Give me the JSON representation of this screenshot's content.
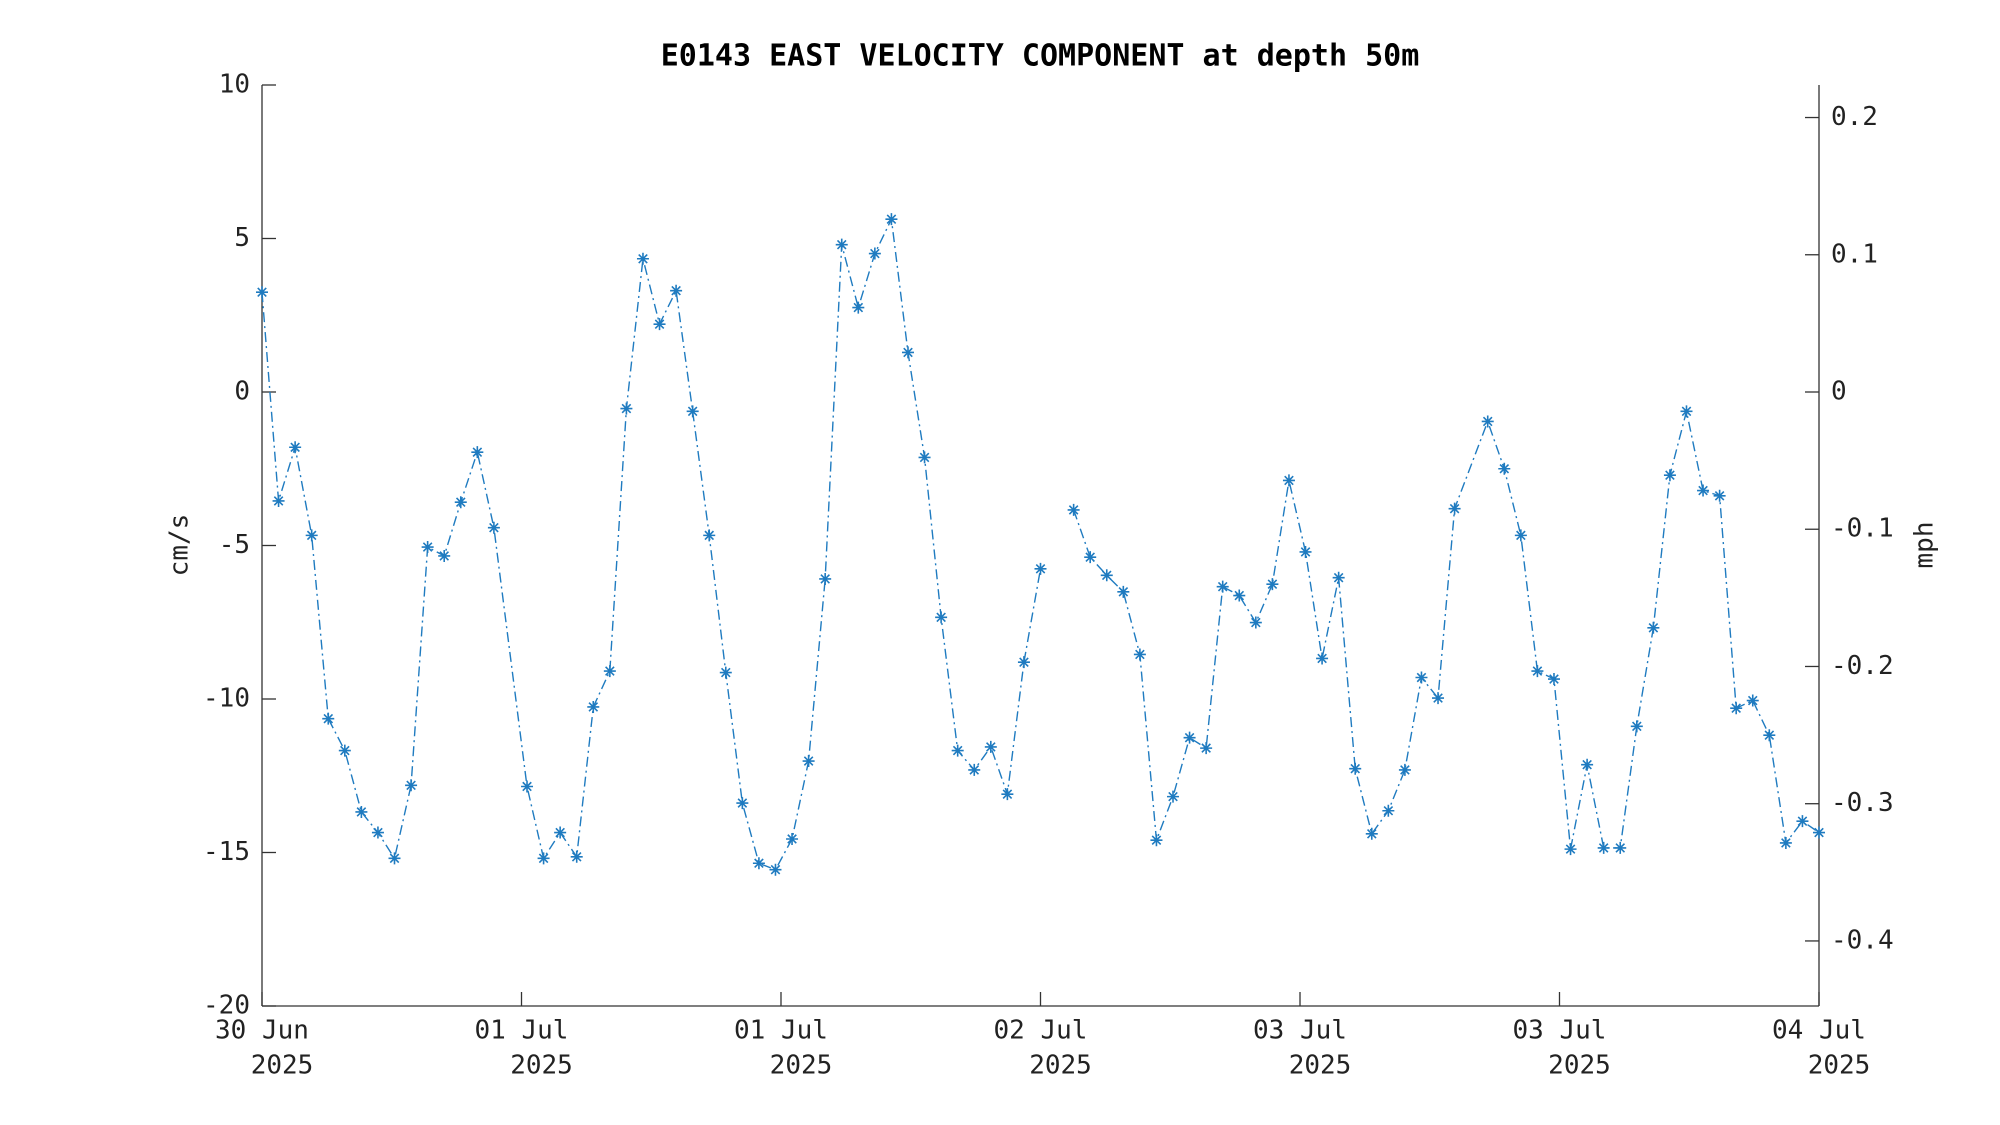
{
  "chart_data": {
    "type": "line",
    "title": "E0143 EAST VELOCITY COMPONENT at depth 50m",
    "y_label": "cm/s",
    "y2_label": "mph",
    "x": [
      0,
      1,
      2,
      3,
      4,
      5,
      6,
      7,
      8,
      9,
      10,
      11,
      12,
      13,
      14,
      16,
      17,
      18,
      19,
      20,
      21,
      22,
      23,
      24,
      25,
      26,
      27,
      28,
      29,
      30,
      31,
      32,
      33,
      34,
      35,
      36,
      37,
      38,
      39,
      40,
      41,
      42,
      43,
      44,
      45,
      46,
      47,
      48,
      49,
      50,
      51,
      52,
      53,
      54,
      55,
      56,
      57,
      58,
      59,
      60,
      61,
      62,
      63,
      64,
      65,
      66,
      67,
      68,
      69,
      70,
      71,
      72,
      74,
      75,
      76,
      77,
      78,
      79,
      80,
      81,
      82,
      83,
      84,
      85,
      86,
      87,
      88,
      89,
      90,
      91,
      92,
      93,
      94
    ],
    "series": [
      {
        "name": "cm/s",
        "color": "#1f7bc0",
        "marker": "asterisk",
        "line_style": "dashdot",
        "values": [
          3.25,
          -3.55,
          -1.8,
          -4.67,
          -10.64,
          -11.68,
          -13.68,
          -14.35,
          -15.19,
          -12.81,
          -5.05,
          -5.34,
          -3.59,
          -1.96,
          -4.42,
          -12.85,
          -15.19,
          -14.35,
          -15.14,
          -10.26,
          -9.09,
          -0.54,
          4.34,
          2.21,
          3.3,
          -0.63,
          -4.67,
          -9.14,
          -13.39,
          -15.35,
          -15.56,
          -14.56,
          -12.02,
          -6.09,
          4.8,
          2.75,
          4.51,
          5.63,
          1.29,
          -2.13,
          -7.34,
          -11.68,
          -12.31,
          -11.56,
          -13.1,
          -8.8,
          -5.76,
          null,
          -3.84,
          -5.38,
          -5.97,
          -6.51,
          -8.55,
          -14.6,
          -13.18,
          -11.26,
          -11.6,
          -6.34,
          -6.63,
          -7.51,
          -6.26,
          -2.88,
          -5.21,
          -8.68,
          -6.05,
          -12.27,
          -14.39,
          -13.64,
          -12.31,
          -9.3,
          -9.97,
          -3.8,
          -0.96,
          -2.5,
          -4.67,
          -9.09,
          -9.35,
          -14.89,
          -12.14,
          -14.85,
          -14.85,
          -10.89,
          -7.68,
          -2.71,
          -0.63,
          -3.21,
          -3.38,
          -10.3,
          -10.05,
          -11.18,
          -14.69,
          -13.98,
          -14.35
        ]
      }
    ],
    "xlim": [
      0,
      94
    ],
    "xticks": [
      {
        "value": 0,
        "label": [
          "30 Jun",
          "2025"
        ]
      },
      {
        "value": 15.667,
        "label": [
          "01 Jul",
          "2025"
        ]
      },
      {
        "value": 31.333,
        "label": [
          "01 Jul",
          "2025"
        ]
      },
      {
        "value": 47,
        "label": [
          "02 Jul",
          "2025"
        ]
      },
      {
        "value": 62.667,
        "label": [
          "03 Jul",
          "2025"
        ]
      },
      {
        "value": 78.333,
        "label": [
          "03 Jul",
          "2025"
        ]
      },
      {
        "value": 94,
        "label": [
          "04 Jul",
          "2025"
        ]
      }
    ],
    "ylim": [
      -20,
      10
    ],
    "yticks": [
      -20,
      -15,
      -10,
      -5,
      0,
      5,
      10
    ],
    "y2lim": [
      -0.4474,
      0.2237
    ],
    "y2ticks": [
      -0.4,
      -0.3,
      -0.2,
      -0.1,
      0,
      0.1,
      0.2
    ],
    "grid": false
  }
}
